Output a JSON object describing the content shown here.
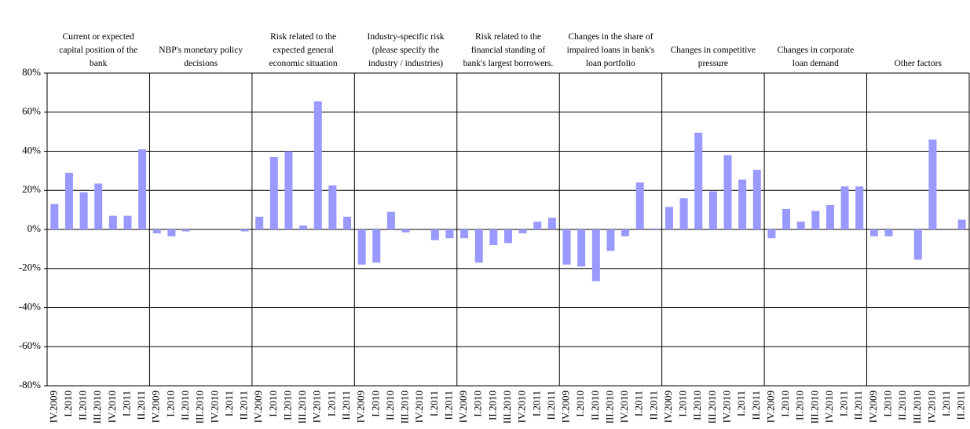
{
  "chart_data": {
    "type": "bar",
    "categories": [
      "IV.2009",
      "I.2010",
      "II.2010",
      "III.2010",
      "IV.2010",
      "I.2011",
      "II.2011"
    ],
    "groups": [
      {
        "name": "Current or expected capital position of the bank",
        "values": [
          13,
          29,
          19,
          23.5,
          7,
          7,
          41
        ]
      },
      {
        "name": "NBP's monetary policy decisions",
        "values": [
          -2,
          -3.5,
          -1,
          0,
          0,
          0,
          -1
        ]
      },
      {
        "name": "Risk related to the expected general economic situation",
        "values": [
          6.5,
          37,
          40,
          2,
          65.5,
          22.5,
          6.5
        ]
      },
      {
        "name": "Industry-specific risk (please specify the industry / industries)",
        "values": [
          -18,
          -17,
          9,
          -1.5,
          0,
          -5.5,
          -4.5
        ]
      },
      {
        "name": "Risk related to the financial standing of bank's largest borrowers.",
        "values": [
          -4.5,
          -17,
          -8,
          -7,
          -2,
          4,
          6
        ]
      },
      {
        "name": "Changes in the share of impaired loans in bank's loan portfolio",
        "values": [
          -18,
          -19,
          -26.5,
          -11,
          -3.5,
          24,
          0.5
        ]
      },
      {
        "name": "Changes in competitive pressure",
        "values": [
          11.5,
          16,
          49.5,
          19.5,
          38,
          25.5,
          30.5
        ]
      },
      {
        "name": "Changes in corporate loan demand",
        "values": [
          -4.5,
          10.5,
          4,
          9.5,
          12.5,
          22,
          22
        ]
      },
      {
        "name": "Other factors",
        "values": [
          -3.5,
          -3.5,
          0,
          -15.5,
          46,
          0,
          5
        ]
      }
    ],
    "color": "#9999ff",
    "ylim": [
      -80,
      80
    ],
    "yticks": [
      {
        "value": -80,
        "label": "-80%"
      },
      {
        "value": -60,
        "label": "-60%"
      },
      {
        "value": -40,
        "label": "-40%"
      },
      {
        "value": -20,
        "label": "-20%"
      },
      {
        "value": 0,
        "label": "0%"
      },
      {
        "value": 20,
        "label": "20%"
      },
      {
        "value": 40,
        "label": "40%"
      },
      {
        "value": 60,
        "label": "60%"
      },
      {
        "value": 80,
        "label": "80%"
      }
    ],
    "grid": true
  }
}
